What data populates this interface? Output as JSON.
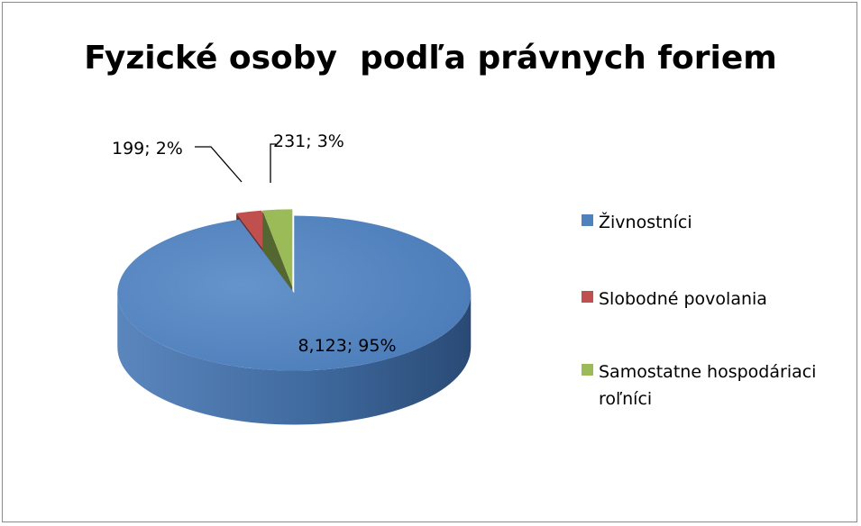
{
  "chart_data": {
    "type": "pie",
    "title": "Fyzické osoby  podľa právnych foriem",
    "categories": [
      "Živnostníci",
      "Slobodné povolania",
      "Samostatne hospodáriaci roľníci"
    ],
    "values": [
      8123,
      199,
      231
    ],
    "percents": [
      95,
      2,
      3
    ],
    "data_labels": [
      "8,123; 95%",
      "199; 2%",
      "231; 3%"
    ],
    "colors": [
      "#4f81bd",
      "#c0504d",
      "#9bbb59"
    ],
    "style": "3d-exploded",
    "legend_position": "right"
  }
}
